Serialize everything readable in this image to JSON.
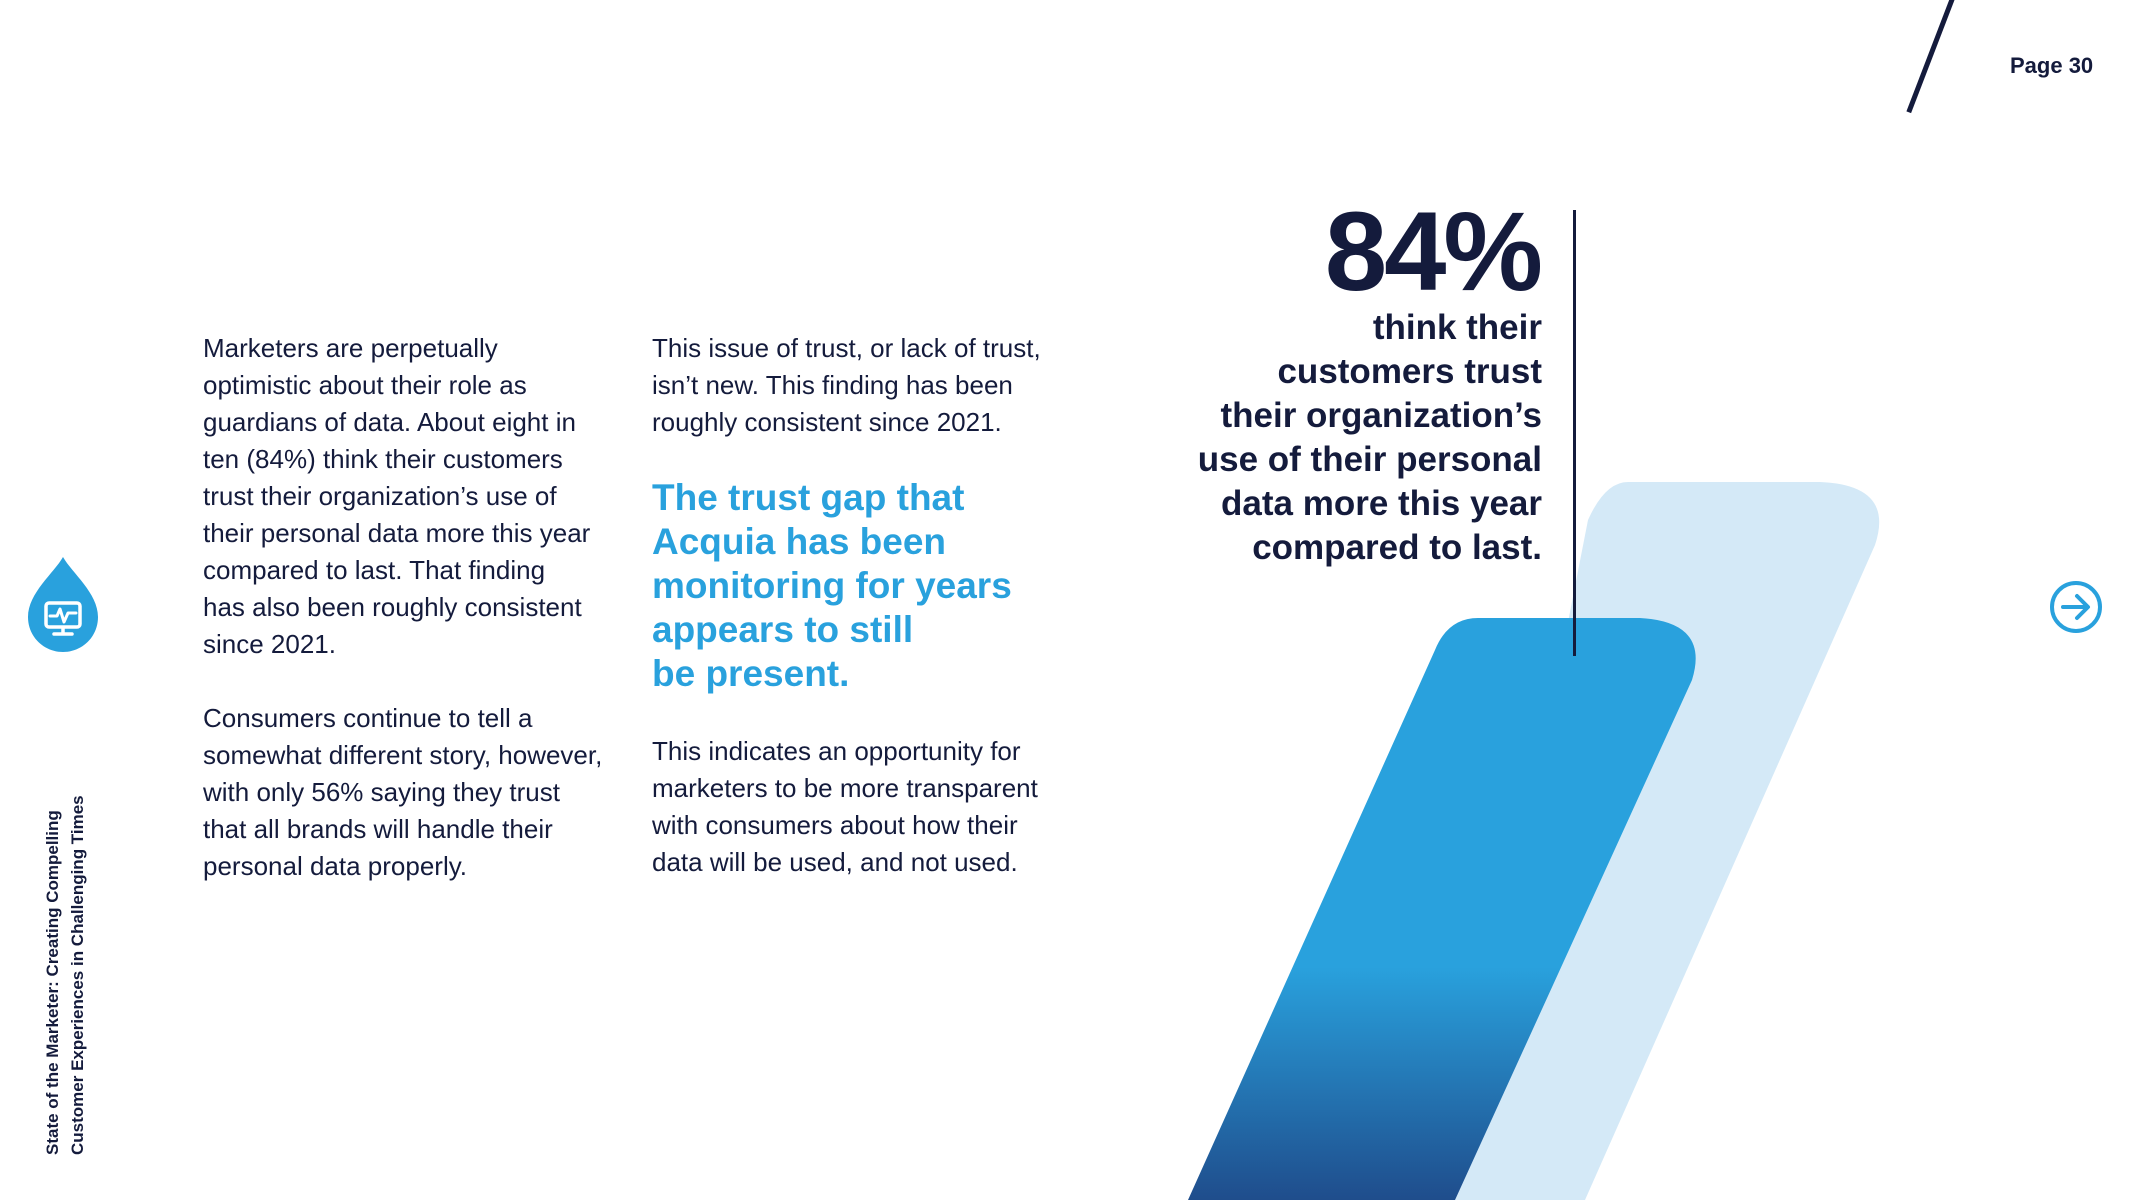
{
  "header": {
    "page_label": "Page 30"
  },
  "sidebar": {
    "title_line1": "State of the Marketer: Creating Compelling",
    "title_line2": "Customer Experiences in Challenging Times",
    "icon": "monitor-drop-icon"
  },
  "column_left": {
    "para1": [
      "Marketers are perpetually",
      "optimistic about their role as",
      "guardians of data. About eight in",
      "ten (84%) think their customers",
      "trust their organization’s use of",
      "their personal data more this year",
      "compared to last. That finding",
      "has also been roughly consistent",
      "since 2021."
    ],
    "para2": [
      "Consumers continue to tell a",
      "somewhat different story, however,",
      "with only 56% saying they trust",
      "that all brands will handle their",
      "personal data properly."
    ]
  },
  "column_mid": {
    "para1": [
      "This issue of trust, or lack of trust,",
      "isn’t new. This finding has been",
      "roughly consistent since 2021."
    ],
    "callout": [
      "The trust gap that",
      "Acquia has been",
      "monitoring for years",
      "appears to still",
      "be present."
    ],
    "para2": [
      "This indicates an opportunity for",
      "marketers to be more transparent",
      "with consumers about how their",
      "data will be used, and not used."
    ]
  },
  "stat": {
    "number": "84%",
    "lines": [
      "think their",
      "customers trust",
      "their organization’s",
      "use of their personal",
      "data more this year",
      "compared to last."
    ]
  },
  "nav": {
    "next_icon": "arrow-right-circle-icon"
  },
  "colors": {
    "navy": "#141b3c",
    "accent_blue": "#29a1dd",
    "light_blue": "#d4e9f7",
    "deep_blue": "#1f4d8c"
  }
}
